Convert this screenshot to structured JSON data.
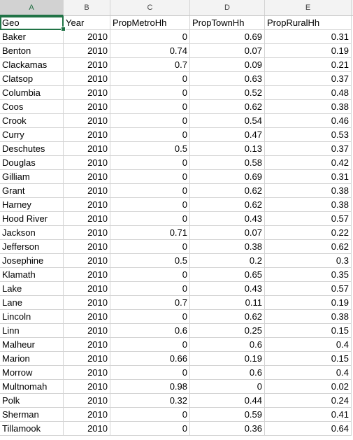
{
  "columns": [
    "A",
    "B",
    "C",
    "D",
    "E"
  ],
  "headers": [
    "Geo",
    "Year",
    "PropMetroHh",
    "PropTownHh",
    "PropRuralHh"
  ],
  "rows": [
    [
      "Baker",
      "2010",
      "0",
      "0.69",
      "0.31"
    ],
    [
      "Benton",
      "2010",
      "0.74",
      "0.07",
      "0.19"
    ],
    [
      "Clackamas",
      "2010",
      "0.7",
      "0.09",
      "0.21"
    ],
    [
      "Clatsop",
      "2010",
      "0",
      "0.63",
      "0.37"
    ],
    [
      "Columbia",
      "2010",
      "0",
      "0.52",
      "0.48"
    ],
    [
      "Coos",
      "2010",
      "0",
      "0.62",
      "0.38"
    ],
    [
      "Crook",
      "2010",
      "0",
      "0.54",
      "0.46"
    ],
    [
      "Curry",
      "2010",
      "0",
      "0.47",
      "0.53"
    ],
    [
      "Deschutes",
      "2010",
      "0.5",
      "0.13",
      "0.37"
    ],
    [
      "Douglas",
      "2010",
      "0",
      "0.58",
      "0.42"
    ],
    [
      "Gilliam",
      "2010",
      "0",
      "0.69",
      "0.31"
    ],
    [
      "Grant",
      "2010",
      "0",
      "0.62",
      "0.38"
    ],
    [
      "Harney",
      "2010",
      "0",
      "0.62",
      "0.38"
    ],
    [
      "Hood River",
      "2010",
      "0",
      "0.43",
      "0.57"
    ],
    [
      "Jackson",
      "2010",
      "0.71",
      "0.07",
      "0.22"
    ],
    [
      "Jefferson",
      "2010",
      "0",
      "0.38",
      "0.62"
    ],
    [
      "Josephine",
      "2010",
      "0.5",
      "0.2",
      "0.3"
    ],
    [
      "Klamath",
      "2010",
      "0",
      "0.65",
      "0.35"
    ],
    [
      "Lake",
      "2010",
      "0",
      "0.43",
      "0.57"
    ],
    [
      "Lane",
      "2010",
      "0.7",
      "0.11",
      "0.19"
    ],
    [
      "Lincoln",
      "2010",
      "0",
      "0.62",
      "0.38"
    ],
    [
      "Linn",
      "2010",
      "0.6",
      "0.25",
      "0.15"
    ],
    [
      "Malheur",
      "2010",
      "0",
      "0.6",
      "0.4"
    ],
    [
      "Marion",
      "2010",
      "0.66",
      "0.19",
      "0.15"
    ],
    [
      "Morrow",
      "2010",
      "0",
      "0.6",
      "0.4"
    ],
    [
      "Multnomah",
      "2010",
      "0.98",
      "0",
      "0.02"
    ],
    [
      "Polk",
      "2010",
      "0.32",
      "0.44",
      "0.24"
    ],
    [
      "Sherman",
      "2010",
      "0",
      "0.59",
      "0.41"
    ],
    [
      "Tillamook",
      "2010",
      "0",
      "0.36",
      "0.64"
    ]
  ],
  "colors": {
    "accent": "#217346",
    "header_bg": "#f3f3f3",
    "gridline": "#d4d4d4"
  }
}
